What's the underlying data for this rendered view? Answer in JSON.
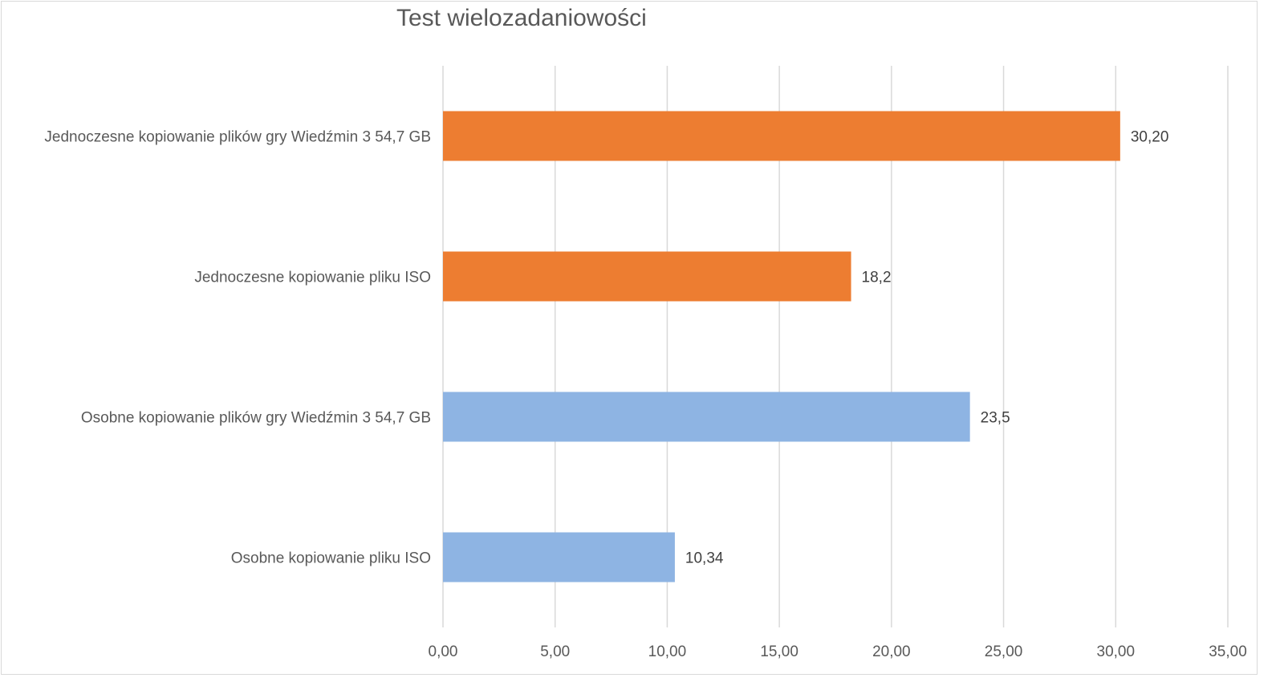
{
  "chart_data": {
    "type": "bar",
    "orientation": "horizontal",
    "title": "Test wielozadaniowości",
    "categories": [
      "Jednoczesne kopiowanie plików gry Wiedźmin 3 54,7 GB",
      "Jednoczesne kopiowanie pliku ISO",
      "Osobne kopiowanie plików gry Wiedźmin 3 54,7 GB",
      "Osobne kopiowanie pliku ISO"
    ],
    "values": [
      30.2,
      18.2,
      23.5,
      10.34
    ],
    "data_labels": [
      "30,20",
      "18,2",
      "23,5",
      "10,34"
    ],
    "bar_colors": [
      "#ED7D31",
      "#ED7D31",
      "#8EB4E3",
      "#8EB4E3"
    ],
    "xlim": [
      0,
      35
    ],
    "x_ticks": [
      0,
      5,
      10,
      15,
      20,
      25,
      30,
      35
    ],
    "x_tick_labels": [
      "0,00",
      "5,00",
      "10,00",
      "15,00",
      "20,00",
      "25,00",
      "30,00",
      "35,00"
    ],
    "grid": true,
    "legend": "none",
    "gridline_color": "#d9d9d9"
  }
}
